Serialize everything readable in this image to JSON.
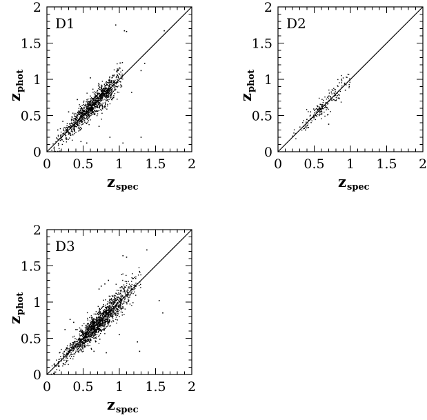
{
  "chart_data": [
    {
      "type": "scatter",
      "panel_label": "D1",
      "xlabel_main": "z",
      "xlabel_sub": "spec",
      "ylabel_main": "z",
      "ylabel_sub": "phot",
      "xlim": [
        0,
        2
      ],
      "ylim": [
        0,
        2
      ],
      "x_ticks": [
        "0",
        "0.5",
        "1",
        "1.5",
        "2"
      ],
      "y_ticks": [
        "0",
        "0.5",
        "1",
        "1.5",
        "2"
      ],
      "reference_line": "y = x",
      "cloud": {
        "n": 1100,
        "x_range": [
          0.05,
          1.05
        ],
        "center_x": 0.65,
        "spread_x": 0.22,
        "scatter_y": 0.05
      },
      "points": [
        {
          "x": 0.95,
          "y": 1.75
        },
        {
          "x": 1.07,
          "y": 1.67
        },
        {
          "x": 1.1,
          "y": 1.66
        },
        {
          "x": 1.35,
          "y": 1.22
        },
        {
          "x": 1.3,
          "y": 1.12
        },
        {
          "x": 1.17,
          "y": 0.82
        },
        {
          "x": 0.6,
          "y": 1.02
        },
        {
          "x": 0.87,
          "y": 0.2
        },
        {
          "x": 0.47,
          "y": 0.14
        },
        {
          "x": 0.55,
          "y": 0.12
        },
        {
          "x": 1.05,
          "y": 0.12
        },
        {
          "x": 1.3,
          "y": 0.2
        },
        {
          "x": 0.42,
          "y": 0.72
        },
        {
          "x": 0.3,
          "y": 0.55
        },
        {
          "x": 0.72,
          "y": 0.35
        },
        {
          "x": 1.62,
          "y": 1.67
        },
        {
          "x": 0.15,
          "y": 0.3
        },
        {
          "x": 0.22,
          "y": 0.42
        }
      ]
    },
    {
      "type": "scatter",
      "panel_label": "D2",
      "xlabel_main": "z",
      "xlabel_sub": "spec",
      "ylabel_main": "z",
      "ylabel_sub": "phot",
      "xlim": [
        0,
        2
      ],
      "ylim": [
        0,
        2
      ],
      "x_ticks": [
        "0",
        "0.5",
        "1",
        "1.5",
        "2"
      ],
      "y_ticks": [
        "0",
        "0.5",
        "1",
        "1.5",
        "2"
      ],
      "reference_line": "y = x",
      "cloud": {
        "n": 200,
        "x_range": [
          0.2,
          1.0
        ],
        "center_x": 0.65,
        "spread_x": 0.2,
        "scatter_y": 0.04
      },
      "points": [
        {
          "x": 0.7,
          "y": 0.38
        },
        {
          "x": 0.45,
          "y": 0.55
        },
        {
          "x": 0.38,
          "y": 0.3
        },
        {
          "x": 0.88,
          "y": 0.98
        },
        {
          "x": 0.93,
          "y": 0.85
        }
      ]
    },
    {
      "type": "scatter",
      "panel_label": "D3",
      "xlabel_main": "z",
      "xlabel_sub": "spec",
      "ylabel_main": "z",
      "ylabel_sub": "phot",
      "xlim": [
        0,
        2
      ],
      "ylim": [
        0,
        2
      ],
      "x_ticks": [
        "0",
        "0.5",
        "1",
        "1.5",
        "2"
      ],
      "y_ticks": [
        "0",
        "0.5",
        "1",
        "1.5",
        "2"
      ],
      "reference_line": "y = x",
      "cloud": {
        "n": 1400,
        "x_range": [
          0.05,
          1.3
        ],
        "center_x": 0.7,
        "spread_x": 0.25,
        "scatter_y": 0.05
      },
      "points": [
        {
          "x": 1.05,
          "y": 1.64
        },
        {
          "x": 1.1,
          "y": 1.62
        },
        {
          "x": 1.38,
          "y": 1.72
        },
        {
          "x": 0.75,
          "y": 1.22
        },
        {
          "x": 0.8,
          "y": 1.25
        },
        {
          "x": 0.85,
          "y": 1.3
        },
        {
          "x": 0.72,
          "y": 1.18
        },
        {
          "x": 1.6,
          "y": 0.85
        },
        {
          "x": 1.28,
          "y": 0.32
        },
        {
          "x": 0.82,
          "y": 0.3
        },
        {
          "x": 0.65,
          "y": 0.32
        },
        {
          "x": 0.37,
          "y": 0.72
        },
        {
          "x": 0.32,
          "y": 0.76
        },
        {
          "x": 0.4,
          "y": 0.62
        },
        {
          "x": 1.0,
          "y": 0.55
        },
        {
          "x": 1.25,
          "y": 0.45
        },
        {
          "x": 1.55,
          "y": 1.02
        },
        {
          "x": 0.25,
          "y": 0.62
        }
      ]
    }
  ]
}
